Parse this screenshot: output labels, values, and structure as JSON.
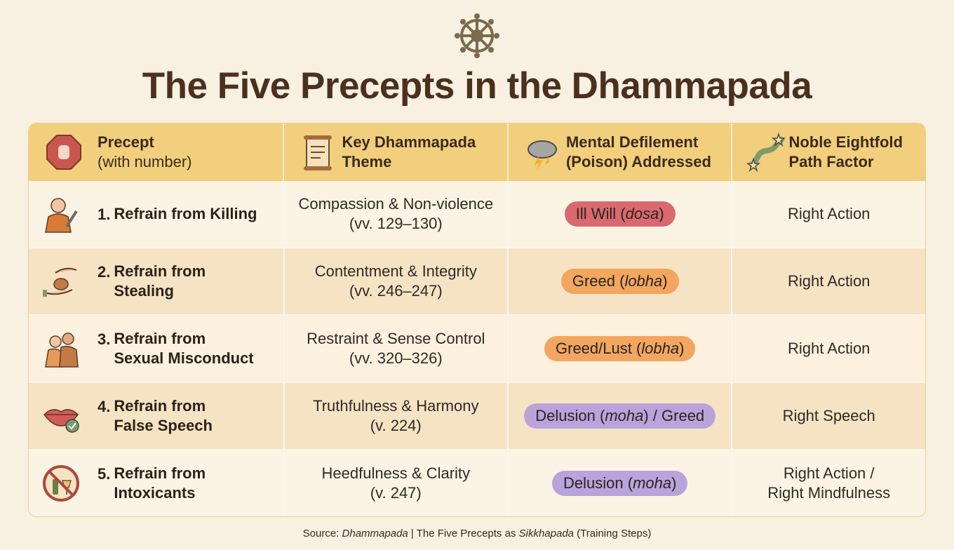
{
  "title": "The Five Precepts in the Dhammapada",
  "table": {
    "headers": [
      {
        "lines": [
          "Precept",
          "(with number)"
        ]
      },
      {
        "lines": [
          "Key Dhammapada",
          "Theme"
        ]
      },
      {
        "lines": [
          "Mental Defilement",
          "(Poison) Addressed"
        ]
      },
      {
        "lines": [
          "Noble Eightfold",
          "Path Factor"
        ]
      }
    ],
    "rows": [
      {
        "number": "1.",
        "precept": [
          "Refrain from Killing"
        ],
        "theme": [
          "Compassion & Non-violence",
          "(vv. 129–130)"
        ],
        "poison": [
          "Ill Will (",
          "dosa",
          ")"
        ],
        "poison_color": "#d9696e",
        "path": [
          "Right Action"
        ]
      },
      {
        "number": "2.",
        "precept": [
          "Refrain from",
          "Stealing"
        ],
        "theme": [
          "Contentment & Integrity",
          "(vv. 246–247)"
        ],
        "poison": [
          "Greed (",
          "lobha",
          ")"
        ],
        "poison_color": "#f2a660",
        "path": [
          "Right Action"
        ]
      },
      {
        "number": "3.",
        "precept": [
          "Refrain from",
          "Sexual Misconduct"
        ],
        "theme": [
          "Restraint & Sense Control",
          "(vv. 320–326)"
        ],
        "poison": [
          "Greed/Lust (",
          "lobha",
          ")"
        ],
        "poison_color": "#f2a660",
        "path": [
          "Right Action"
        ]
      },
      {
        "number": "4.",
        "precept": [
          "Refrain from",
          "False Speech"
        ],
        "theme": [
          "Truthfulness & Harmony",
          "(v. 224)"
        ],
        "poison": [
          "Delusion (",
          "moha",
          ") / Greed"
        ],
        "poison_color": "#b9a3da",
        "path": [
          "Right Speech"
        ]
      },
      {
        "number": "5.",
        "precept": [
          "Refrain from",
          "Intoxicants"
        ],
        "theme": [
          "Heedfulness & Clarity",
          "(v. 247)"
        ],
        "poison": [
          "Delusion (",
          "moha",
          ")"
        ],
        "poison_color": "#b9a3da",
        "path": [
          "Right Action /",
          "Right Mindfulness"
        ]
      }
    ]
  },
  "source": [
    "Source: ",
    "Dhammapada",
    " | The Five Precepts as ",
    "Sikkhapada",
    " (Training Steps)"
  ]
}
